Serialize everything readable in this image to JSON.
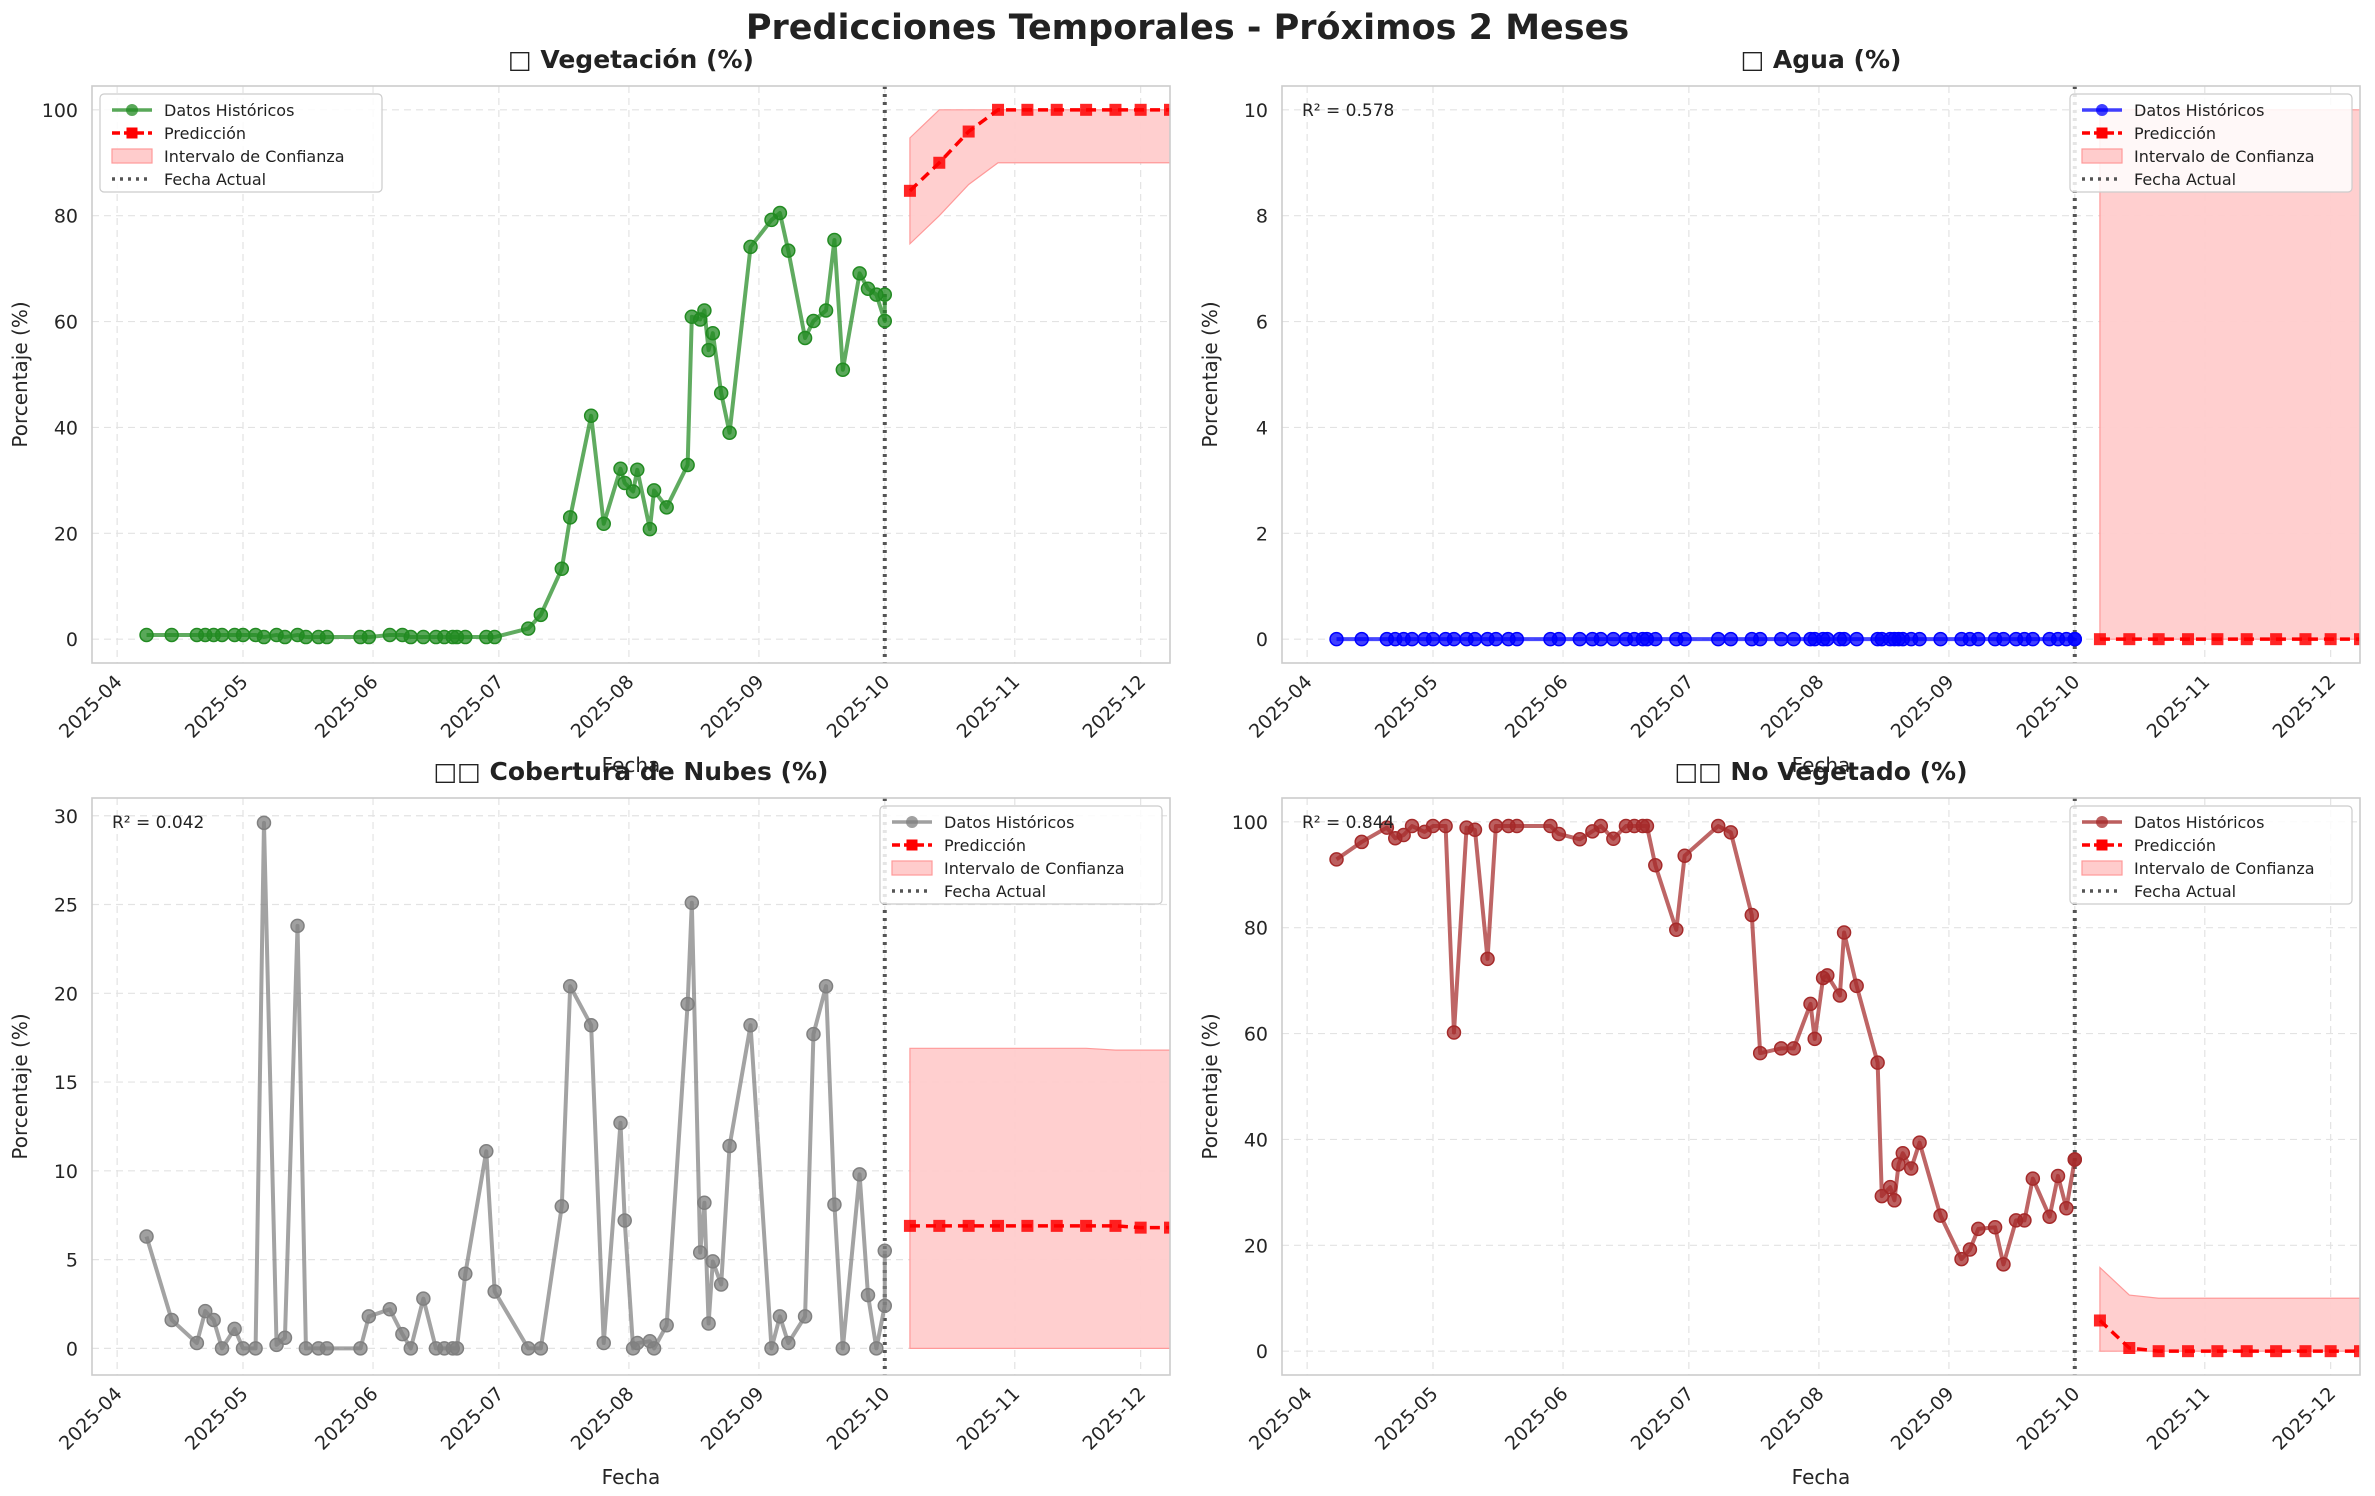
{
  "suptitle": "Predicciones Temporales - Próximos 2 Meses",
  "colors": {
    "prediction": "#ff0000",
    "ci_fill": "#ffcccc",
    "ci_edge": "#ff9999",
    "current_line": "#555555",
    "grid": "#e3e3e3"
  },
  "chart_data": [
    {
      "type": "line",
      "title": "□ Vegetación (%)",
      "xlabel": "Fecha",
      "ylabel": "Porcentaje (%)",
      "ylim": [
        -4.5,
        104.5
      ],
      "yticks": [
        0,
        20,
        40,
        60,
        80,
        100
      ],
      "xticks": [
        "2025-04",
        "2025-05",
        "2025-06",
        "2025-07",
        "2025-08",
        "2025-09",
        "2025-10",
        "2025-11",
        "2025-12"
      ],
      "xlim": [
        "2025-03-26",
        "2025-12-08"
      ],
      "grid": true,
      "legend_position": "upper left",
      "r2_text": "",
      "current_date": "2025-10-01",
      "color": "#228b22",
      "series": [
        {
          "name": "Datos Históricos",
          "x": [
            "2025-04-08",
            "2025-04-14",
            "2025-04-20",
            "2025-04-22",
            "2025-04-24",
            "2025-04-26",
            "2025-04-29",
            "2025-05-01",
            "2025-05-04",
            "2025-05-06",
            "2025-05-09",
            "2025-05-11",
            "2025-05-14",
            "2025-05-16",
            "2025-05-19",
            "2025-05-21",
            "2025-05-29",
            "2025-05-31",
            "2025-06-05",
            "2025-06-08",
            "2025-06-10",
            "2025-06-13",
            "2025-06-16",
            "2025-06-18",
            "2025-06-20",
            "2025-06-21",
            "2025-06-23",
            "2025-06-28",
            "2025-06-30",
            "2025-07-08",
            "2025-07-11",
            "2025-07-16",
            "2025-07-18",
            "2025-07-23",
            "2025-07-26",
            "2025-07-30",
            "2025-07-31",
            "2025-08-02",
            "2025-08-03",
            "2025-08-06",
            "2025-08-07",
            "2025-08-10",
            "2025-08-15",
            "2025-08-16",
            "2025-08-18",
            "2025-08-19",
            "2025-08-20",
            "2025-08-21",
            "2025-08-23",
            "2025-08-25",
            "2025-08-30",
            "2025-09-04",
            "2025-09-06",
            "2025-09-08",
            "2025-09-12",
            "2025-09-14",
            "2025-09-17",
            "2025-09-19",
            "2025-09-21",
            "2025-09-25",
            "2025-09-27",
            "2025-09-29",
            "2025-10-01",
            "2025-10-01"
          ],
          "values": [
            0.8,
            0.8,
            0.8,
            0.8,
            0.8,
            0.8,
            0.8,
            0.8,
            0.8,
            0.4,
            0.8,
            0.4,
            0.8,
            0.4,
            0.4,
            0.4,
            0.4,
            0.4,
            0.8,
            0.8,
            0.4,
            0.4,
            0.4,
            0.4,
            0.4,
            0.4,
            0.4,
            0.4,
            0.4,
            2.0,
            4.6,
            13.3,
            23.0,
            42.2,
            21.8,
            32.2,
            29.5,
            27.9,
            32.0,
            20.8,
            28.1,
            24.9,
            32.9,
            60.9,
            60.4,
            62.1,
            54.6,
            57.8,
            46.5,
            39.0,
            74.1,
            79.2,
            80.5,
            73.4,
            56.9,
            60.1,
            62.1,
            75.4,
            50.9,
            69.1,
            66.2,
            65.1,
            60.1,
            65.1
          ]
        },
        {
          "name": "Predicción",
          "x": [
            "2025-10-07",
            "2025-10-14",
            "2025-10-21",
            "2025-10-28",
            "2025-11-04",
            "2025-11-11",
            "2025-11-18",
            "2025-11-25",
            "2025-12-01",
            "2025-12-08",
            "2025-12-15"
          ],
          "values": [
            84.7,
            90.0,
            95.9,
            100,
            100,
            100,
            100,
            100,
            100,
            100,
            100
          ]
        },
        {
          "name": "Intervalo de Confianza",
          "lower": [
            74.7,
            80.0,
            85.9,
            90,
            90,
            90,
            90,
            90,
            90,
            90,
            90
          ],
          "upper": [
            94.7,
            100,
            100,
            100,
            100,
            100,
            100,
            100,
            100,
            100,
            100
          ]
        },
        {
          "name": "Fecha Actual"
        }
      ]
    },
    {
      "type": "line",
      "title": "□ Agua (%)",
      "xlabel": "Fecha",
      "ylabel": "Porcentaje (%)",
      "ylim": [
        -0.45,
        10.45
      ],
      "yticks": [
        0,
        2,
        4,
        6,
        8,
        10
      ],
      "xticks": [
        "2025-04",
        "2025-05",
        "2025-06",
        "2025-07",
        "2025-08",
        "2025-09",
        "2025-10",
        "2025-11",
        "2025-12"
      ],
      "xlim": [
        "2025-03-26",
        "2025-12-08"
      ],
      "grid": true,
      "legend_position": "upper right",
      "r2_text": "R² = 0.578",
      "current_date": "2025-10-01",
      "color": "#0000ff",
      "series": [
        {
          "name": "Datos Históricos",
          "x": [
            "2025-04-08",
            "2025-04-14",
            "2025-04-20",
            "2025-04-22",
            "2025-04-24",
            "2025-04-26",
            "2025-04-29",
            "2025-05-01",
            "2025-05-04",
            "2025-05-06",
            "2025-05-09",
            "2025-05-11",
            "2025-05-14",
            "2025-05-16",
            "2025-05-19",
            "2025-05-21",
            "2025-05-29",
            "2025-05-31",
            "2025-06-05",
            "2025-06-08",
            "2025-06-10",
            "2025-06-13",
            "2025-06-16",
            "2025-06-18",
            "2025-06-20",
            "2025-06-21",
            "2025-06-23",
            "2025-06-28",
            "2025-06-30",
            "2025-07-08",
            "2025-07-11",
            "2025-07-16",
            "2025-07-18",
            "2025-07-23",
            "2025-07-26",
            "2025-07-30",
            "2025-07-31",
            "2025-08-02",
            "2025-08-03",
            "2025-08-06",
            "2025-08-07",
            "2025-08-10",
            "2025-08-15",
            "2025-08-16",
            "2025-08-18",
            "2025-08-19",
            "2025-08-20",
            "2025-08-21",
            "2025-08-23",
            "2025-08-25",
            "2025-08-30",
            "2025-09-04",
            "2025-09-06",
            "2025-09-08",
            "2025-09-12",
            "2025-09-14",
            "2025-09-17",
            "2025-09-19",
            "2025-09-21",
            "2025-09-25",
            "2025-09-27",
            "2025-09-29",
            "2025-10-01",
            "2025-10-01"
          ],
          "values": [
            0,
            0,
            0,
            0,
            0,
            0,
            0,
            0,
            0,
            0,
            0,
            0,
            0,
            0,
            0,
            0,
            0,
            0,
            0,
            0,
            0,
            0,
            0,
            0,
            0,
            0,
            0,
            0,
            0,
            0,
            0,
            0,
            0,
            0,
            0,
            0,
            0,
            0,
            0,
            0,
            0,
            0,
            0,
            0,
            0,
            0,
            0,
            0,
            0,
            0,
            0,
            0,
            0,
            0,
            0,
            0,
            0,
            0,
            0,
            0,
            0,
            0,
            0,
            0
          ]
        },
        {
          "name": "Predicción",
          "x": [
            "2025-10-07",
            "2025-10-14",
            "2025-10-21",
            "2025-10-28",
            "2025-11-04",
            "2025-11-11",
            "2025-11-18",
            "2025-11-25",
            "2025-12-01",
            "2025-12-08",
            "2025-12-15"
          ],
          "values": [
            0,
            0,
            0,
            0,
            0,
            0,
            0,
            0,
            0,
            0,
            0
          ]
        },
        {
          "name": "Intervalo de Confianza",
          "lower": [
            0,
            0,
            0,
            0,
            0,
            0,
            0,
            0,
            0,
            0,
            0
          ],
          "upper": [
            10,
            10,
            10,
            10,
            10,
            10,
            10,
            10,
            10,
            10,
            10
          ]
        },
        {
          "name": "Fecha Actual"
        }
      ]
    },
    {
      "type": "line",
      "title": "□□ Cobertura de Nubes (%)",
      "xlabel": "Fecha",
      "ylabel": "Porcentaje (%)",
      "ylim": [
        -1.5,
        31.0
      ],
      "yticks": [
        0,
        5,
        10,
        15,
        20,
        25,
        30
      ],
      "xticks": [
        "2025-04",
        "2025-05",
        "2025-06",
        "2025-07",
        "2025-08",
        "2025-09",
        "2025-10",
        "2025-11",
        "2025-12"
      ],
      "xlim": [
        "2025-03-26",
        "2025-12-08"
      ],
      "grid": true,
      "legend_position": "upper right",
      "r2_text": "R² = 0.042",
      "current_date": "2025-10-01",
      "color": "#808080",
      "series": [
        {
          "name": "Datos Históricos",
          "x": [
            "2025-04-08",
            "2025-04-14",
            "2025-04-20",
            "2025-04-22",
            "2025-04-24",
            "2025-04-26",
            "2025-04-29",
            "2025-05-01",
            "2025-05-04",
            "2025-05-06",
            "2025-05-09",
            "2025-05-11",
            "2025-05-14",
            "2025-05-16",
            "2025-05-19",
            "2025-05-21",
            "2025-05-29",
            "2025-05-31",
            "2025-06-05",
            "2025-06-08",
            "2025-06-10",
            "2025-06-13",
            "2025-06-16",
            "2025-06-18",
            "2025-06-20",
            "2025-06-21",
            "2025-06-23",
            "2025-06-28",
            "2025-06-30",
            "2025-07-08",
            "2025-07-11",
            "2025-07-16",
            "2025-07-18",
            "2025-07-23",
            "2025-07-26",
            "2025-07-30",
            "2025-07-31",
            "2025-08-02",
            "2025-08-03",
            "2025-08-06",
            "2025-08-07",
            "2025-08-10",
            "2025-08-15",
            "2025-08-16",
            "2025-08-18",
            "2025-08-19",
            "2025-08-20",
            "2025-08-21",
            "2025-08-23",
            "2025-08-25",
            "2025-08-30",
            "2025-09-04",
            "2025-09-06",
            "2025-09-08",
            "2025-09-12",
            "2025-09-14",
            "2025-09-17",
            "2025-09-19",
            "2025-09-21",
            "2025-09-25",
            "2025-09-27",
            "2025-09-29",
            "2025-10-01",
            "2025-10-01"
          ],
          "values": [
            6.3,
            1.6,
            0.3,
            2.1,
            1.6,
            0.0,
            1.1,
            0.0,
            0.0,
            29.6,
            0.2,
            0.6,
            23.8,
            0.0,
            0.0,
            0.0,
            0.0,
            1.8,
            2.2,
            0.8,
            0.0,
            2.8,
            0.0,
            0.0,
            0.0,
            0.0,
            4.2,
            11.1,
            3.2,
            0.0,
            0.0,
            8.0,
            20.4,
            18.2,
            0.3,
            12.7,
            7.2,
            0.0,
            0.3,
            0.4,
            0.0,
            1.3,
            19.4,
            25.1,
            5.4,
            8.2,
            1.4,
            4.9,
            3.6,
            11.4,
            18.2,
            0.0,
            1.8,
            0.3,
            1.8,
            17.7,
            20.4,
            8.1,
            0.0,
            9.8,
            3.0,
            0.0,
            2.4,
            5.5
          ]
        },
        {
          "name": "Predicción",
          "x": [
            "2025-10-07",
            "2025-10-14",
            "2025-10-21",
            "2025-10-28",
            "2025-11-04",
            "2025-11-11",
            "2025-11-18",
            "2025-11-25",
            "2025-12-01",
            "2025-12-08",
            "2025-12-15"
          ],
          "values": [
            6.9,
            6.9,
            6.9,
            6.9,
            6.9,
            6.9,
            6.9,
            6.9,
            6.8,
            6.8,
            6.8
          ]
        },
        {
          "name": "Intervalo de Confianza",
          "lower": [
            0,
            0,
            0,
            0,
            0,
            0,
            0,
            0,
            0,
            0,
            0
          ],
          "upper": [
            16.9,
            16.9,
            16.9,
            16.9,
            16.9,
            16.9,
            16.9,
            16.8,
            16.8,
            16.8,
            16.7
          ]
        },
        {
          "name": "Fecha Actual"
        }
      ]
    },
    {
      "type": "line",
      "title": "□□ No Vegetado (%)",
      "xlabel": "Fecha",
      "ylabel": "Porcentaje (%)",
      "ylim": [
        -4.5,
        104.5
      ],
      "yticks": [
        0,
        20,
        40,
        60,
        80,
        100
      ],
      "xticks": [
        "2025-04",
        "2025-05",
        "2025-06",
        "2025-07",
        "2025-08",
        "2025-09",
        "2025-10",
        "2025-11",
        "2025-12"
      ],
      "xlim": [
        "2025-03-26",
        "2025-12-08"
      ],
      "grid": true,
      "legend_position": "upper right",
      "r2_text": "R² = 0.844",
      "current_date": "2025-10-01",
      "color": "#a52a2a",
      "series": [
        {
          "name": "Datos Históricos",
          "x": [
            "2025-04-08",
            "2025-04-14",
            "2025-04-20",
            "2025-04-22",
            "2025-04-24",
            "2025-04-26",
            "2025-04-29",
            "2025-05-01",
            "2025-05-04",
            "2025-05-06",
            "2025-05-09",
            "2025-05-11",
            "2025-05-14",
            "2025-05-16",
            "2025-05-19",
            "2025-05-21",
            "2025-05-29",
            "2025-05-31",
            "2025-06-05",
            "2025-06-08",
            "2025-06-10",
            "2025-06-13",
            "2025-06-16",
            "2025-06-18",
            "2025-06-20",
            "2025-06-21",
            "2025-06-23",
            "2025-06-28",
            "2025-06-30",
            "2025-07-08",
            "2025-07-11",
            "2025-07-16",
            "2025-07-18",
            "2025-07-23",
            "2025-07-26",
            "2025-07-30",
            "2025-07-31",
            "2025-08-02",
            "2025-08-03",
            "2025-08-06",
            "2025-08-07",
            "2025-08-10",
            "2025-08-15",
            "2025-08-16",
            "2025-08-18",
            "2025-08-19",
            "2025-08-20",
            "2025-08-21",
            "2025-08-23",
            "2025-08-25",
            "2025-08-30",
            "2025-09-04",
            "2025-09-06",
            "2025-09-08",
            "2025-09-12",
            "2025-09-14",
            "2025-09-17",
            "2025-09-19",
            "2025-09-21",
            "2025-09-25",
            "2025-09-27",
            "2025-09-29",
            "2025-10-01",
            "2025-10-01"
          ],
          "values": [
            92.9,
            96.2,
            98.9,
            96.9,
            97.5,
            99.2,
            98.1,
            99.2,
            99.2,
            60.2,
            98.9,
            98.5,
            74.1,
            99.2,
            99.2,
            99.2,
            99.2,
            97.7,
            96.7,
            98.2,
            99.2,
            96.8,
            99.2,
            99.2,
            99.2,
            99.2,
            91.8,
            79.6,
            93.6,
            99.2,
            98.0,
            82.4,
            56.3,
            57.2,
            57.2,
            65.6,
            59.0,
            70.5,
            71.0,
            67.2,
            79.1,
            69.0,
            54.5,
            29.3,
            31.0,
            28.5,
            35.3,
            37.4,
            34.5,
            39.4,
            25.6,
            17.4,
            19.2,
            23.1,
            23.4,
            16.4,
            24.7,
            24.7,
            32.6,
            25.4,
            33.1,
            27.0,
            36.2,
            36.2
          ]
        },
        {
          "name": "Predicción",
          "x": [
            "2025-10-07",
            "2025-10-14",
            "2025-10-21",
            "2025-10-28",
            "2025-11-04",
            "2025-11-11",
            "2025-11-18",
            "2025-11-25",
            "2025-12-01",
            "2025-12-08",
            "2025-12-15"
          ],
          "values": [
            5.8,
            0.6,
            0,
            0,
            0,
            0,
            0,
            0,
            0,
            0,
            0
          ]
        },
        {
          "name": "Intervalo de Confianza",
          "lower": [
            0,
            0,
            0,
            0,
            0,
            0,
            0,
            0,
            0,
            0,
            0
          ],
          "upper": [
            15.8,
            10.6,
            10,
            10,
            10,
            10,
            10,
            10,
            10,
            10,
            10
          ]
        },
        {
          "name": "Fecha Actual"
        }
      ]
    }
  ]
}
